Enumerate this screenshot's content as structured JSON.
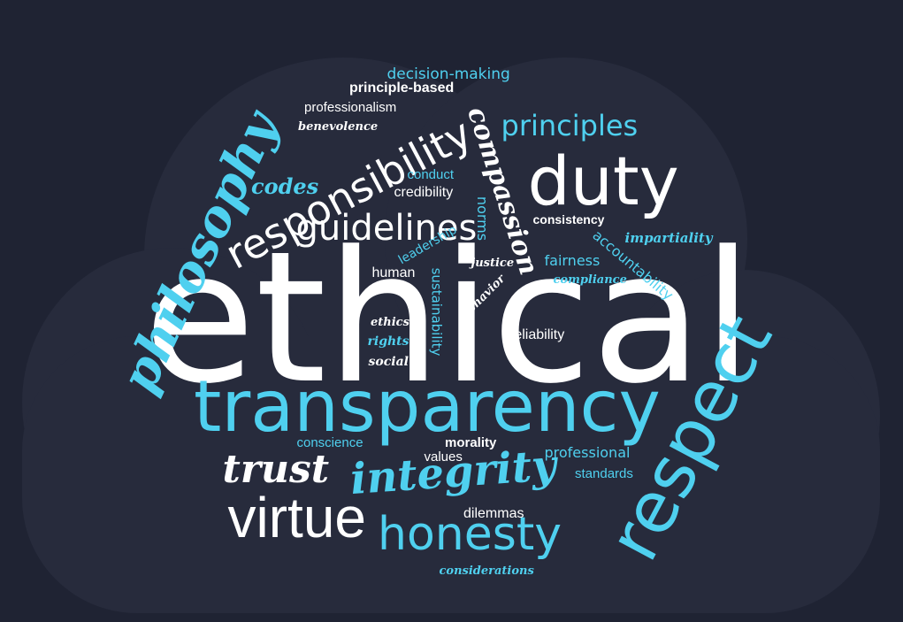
{
  "colors": {
    "background": "#1f2333",
    "cloud": "#272b3c",
    "white": "#ffffff",
    "cyan": "#4fd0ef"
  },
  "words": [
    {
      "text": "ethical",
      "color": "white"
    },
    {
      "text": "transparency",
      "color": "cyan"
    },
    {
      "text": "respect",
      "color": "cyan"
    },
    {
      "text": "philosophy",
      "color": "cyan"
    },
    {
      "text": "duty",
      "color": "white"
    },
    {
      "text": "virtue",
      "color": "white"
    },
    {
      "text": "honesty",
      "color": "cyan"
    },
    {
      "text": "integrity",
      "color": "cyan"
    },
    {
      "text": "trust",
      "color": "white"
    },
    {
      "text": "responsibility",
      "color": "white"
    },
    {
      "text": "guidelines",
      "color": "white"
    },
    {
      "text": "compassion",
      "color": "white"
    },
    {
      "text": "principles",
      "color": "cyan"
    },
    {
      "text": "codes",
      "color": "cyan"
    },
    {
      "text": "decision-making",
      "color": "cyan"
    },
    {
      "text": "principle-based",
      "color": "white"
    },
    {
      "text": "professionalism",
      "color": "white"
    },
    {
      "text": "benevolence",
      "color": "white"
    },
    {
      "text": "conduct",
      "color": "cyan"
    },
    {
      "text": "credibility",
      "color": "white"
    },
    {
      "text": "consistency",
      "color": "white"
    },
    {
      "text": "norms",
      "color": "cyan"
    },
    {
      "text": "leadership",
      "color": "cyan"
    },
    {
      "text": "impartiality",
      "color": "cyan"
    },
    {
      "text": "accountability",
      "color": "cyan"
    },
    {
      "text": "fairness",
      "color": "cyan"
    },
    {
      "text": "compliance",
      "color": "cyan"
    },
    {
      "text": "justice",
      "color": "white"
    },
    {
      "text": "human",
      "color": "white"
    },
    {
      "text": "sustainability",
      "color": "cyan"
    },
    {
      "text": "behavior",
      "color": "white"
    },
    {
      "text": "reliability",
      "color": "white"
    },
    {
      "text": "ethics",
      "color": "white"
    },
    {
      "text": "rights",
      "color": "cyan"
    },
    {
      "text": "social",
      "color": "white"
    },
    {
      "text": "conscience",
      "color": "cyan"
    },
    {
      "text": "morality",
      "color": "white"
    },
    {
      "text": "values",
      "color": "white"
    },
    {
      "text": "professional",
      "color": "cyan"
    },
    {
      "text": "standards",
      "color": "cyan"
    },
    {
      "text": "dilemmas",
      "color": "white"
    },
    {
      "text": "considerations",
      "color": "cyan"
    }
  ]
}
